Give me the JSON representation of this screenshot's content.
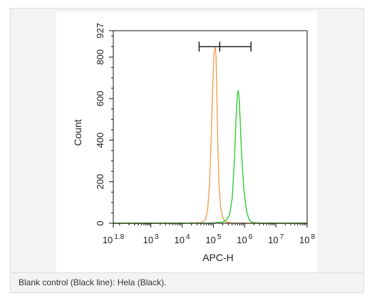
{
  "caption": "Blank control (Black line): Hela (Black).",
  "chart_data": {
    "type": "line",
    "xlabel": "APC-H",
    "ylabel": "Count",
    "x_scale": "log",
    "xlim": [
      63,
      100000000
    ],
    "ylim": [
      0,
      927
    ],
    "x_ticks": [
      {
        "value": 63,
        "base": "10",
        "exp": "1.8"
      },
      {
        "value": 1000,
        "base": "10",
        "exp": "3"
      },
      {
        "value": 10000,
        "base": "10",
        "exp": "4"
      },
      {
        "value": 100000,
        "base": "10",
        "exp": "5"
      },
      {
        "value": 1000000,
        "base": "10",
        "exp": "6"
      },
      {
        "value": 10000000,
        "base": "10",
        "exp": "7"
      },
      {
        "value": 100000000,
        "base": "10",
        "exp": "8"
      }
    ],
    "y_ticks": [
      {
        "value": 0,
        "label": "0"
      },
      {
        "value": 200,
        "label": "200"
      },
      {
        "value": 400,
        "label": "400"
      },
      {
        "value": 600,
        "label": "600"
      },
      {
        "value": 800,
        "label": "800"
      },
      {
        "value": 927,
        "label": "927"
      }
    ],
    "gate": {
      "start": 35000,
      "mid": 160000,
      "end": 1600000,
      "y": 850
    },
    "series": [
      {
        "color": "#f0a050",
        "x": [
          63,
          5000,
          20000,
          40000,
          55000,
          65000,
          75000,
          85000,
          95000,
          105000,
          115000,
          122000,
          128000,
          138000,
          150000,
          170000,
          200000,
          250000,
          400000,
          1000000,
          10000000,
          100000000
        ],
        "y": [
          0,
          0,
          1,
          3,
          15,
          60,
          180,
          400,
          650,
          820,
          850,
          800,
          650,
          400,
          200,
          80,
          25,
          6,
          1,
          0,
          0,
          0
        ]
      },
      {
        "color": "#33cc33",
        "x": [
          63,
          10000,
          50000,
          100000,
          170000,
          250000,
          330000,
          400000,
          470000,
          530000,
          580000,
          620000,
          660000,
          720000,
          800000,
          950000,
          1150000,
          1400000,
          1800000,
          3000000,
          10000000,
          100000000
        ],
        "y": [
          0,
          0,
          0,
          1,
          4,
          12,
          40,
          120,
          300,
          500,
          610,
          640,
          610,
          500,
          330,
          160,
          60,
          15,
          3,
          0,
          0,
          0
        ]
      }
    ]
  }
}
